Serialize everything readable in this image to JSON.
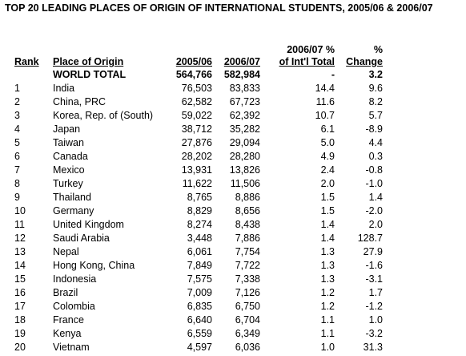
{
  "title": "TOP 20 LEADING PLACES OF ORIGIN OF INTERNATIONAL STUDENTS, 2005/06 & 2006/07",
  "table": {
    "header": [
      [
        "Rank"
      ],
      [
        "Place of Origin"
      ],
      [
        "2005/06"
      ],
      [
        "2006/07"
      ],
      [
        "2006/07 %",
        "of Int'l Total"
      ],
      [
        "%",
        "Change"
      ]
    ],
    "total": [
      "WORLD TOTAL",
      "564,766",
      "582,984",
      "-",
      "3.2"
    ],
    "rows": [
      [
        "1",
        "India",
        "76,503",
        "83,833",
        "14.4",
        "9.6"
      ],
      [
        "2",
        "China, PRC",
        "62,582",
        "67,723",
        "11.6",
        "8.2"
      ],
      [
        "3",
        "Korea, Rep. of (South)",
        "59,022",
        "62,392",
        "10.7",
        "5.7"
      ],
      [
        "4",
        "Japan",
        "38,712",
        "35,282",
        "6.1",
        "-8.9"
      ],
      [
        "5",
        "Taiwan",
        "27,876",
        "29,094",
        "5.0",
        "4.4"
      ],
      [
        "6",
        "Canada",
        "28,202",
        "28,280",
        "4.9",
        "0.3"
      ],
      [
        "7",
        "Mexico",
        "13,931",
        "13,826",
        "2.4",
        "-0.8"
      ],
      [
        "8",
        "Turkey",
        "11,622",
        "11,506",
        "2.0",
        "-1.0"
      ],
      [
        "9",
        "Thailand",
        "8,765",
        "8,886",
        "1.5",
        "1.4"
      ],
      [
        "10",
        "Germany",
        "8,829",
        "8,656",
        "1.5",
        "-2.0"
      ],
      [
        "11",
        "United Kingdom",
        "8,274",
        "8,438",
        "1.4",
        "2.0"
      ],
      [
        "12",
        "Saudi Arabia",
        "3,448",
        "7,886",
        "1.4",
        "128.7"
      ],
      [
        "13",
        "Nepal",
        "6,061",
        "7,754",
        "1.3",
        "27.9"
      ],
      [
        "14",
        "Hong Kong, China",
        "7,849",
        "7,722",
        "1.3",
        "-1.6"
      ],
      [
        "15",
        "Indonesia",
        "7,575",
        "7,338",
        "1.3",
        "-3.1"
      ],
      [
        "16",
        "Brazil",
        "7,009",
        "7,126",
        "1.2",
        "1.7"
      ],
      [
        "17",
        "Colombia",
        "6,835",
        "6,750",
        "1.2",
        "-1.2"
      ],
      [
        "18",
        "France",
        "6,640",
        "6,704",
        "1.1",
        "1.0"
      ],
      [
        "19",
        "Kenya",
        "6,559",
        "6,349",
        "1.1",
        "-3.2"
      ],
      [
        "20",
        "Vietnam",
        "4,597",
        "6,036",
        "1.0",
        "31.3"
      ]
    ]
  }
}
